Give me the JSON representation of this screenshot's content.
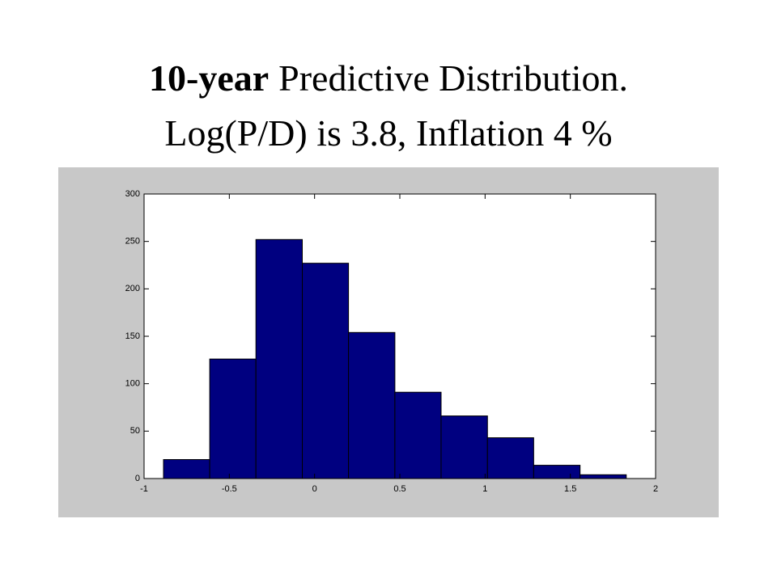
{
  "chart_data": {
    "type": "histogram",
    "title_bold": "10-year",
    "title": "Predictive Distribution.",
    "subtitle": "Log(P/D) is 3.8, Inflation 4 %",
    "bins": [
      -0.886,
      -0.615,
      -0.344,
      -0.072,
      0.199,
      0.471,
      0.742,
      1.014,
      1.285,
      1.557,
      1.828
    ],
    "counts": [
      20,
      126,
      252,
      227,
      154,
      91,
      66,
      43,
      14,
      4
    ],
    "color": "#000080",
    "xlim": [
      -1,
      2
    ],
    "xticks": [
      -1,
      -0.5,
      0,
      0.5,
      1,
      1.5,
      2
    ],
    "ylim": [
      0,
      300
    ],
    "yticks": [
      0,
      50,
      100,
      150,
      200,
      250,
      300
    ],
    "grid": false
  }
}
